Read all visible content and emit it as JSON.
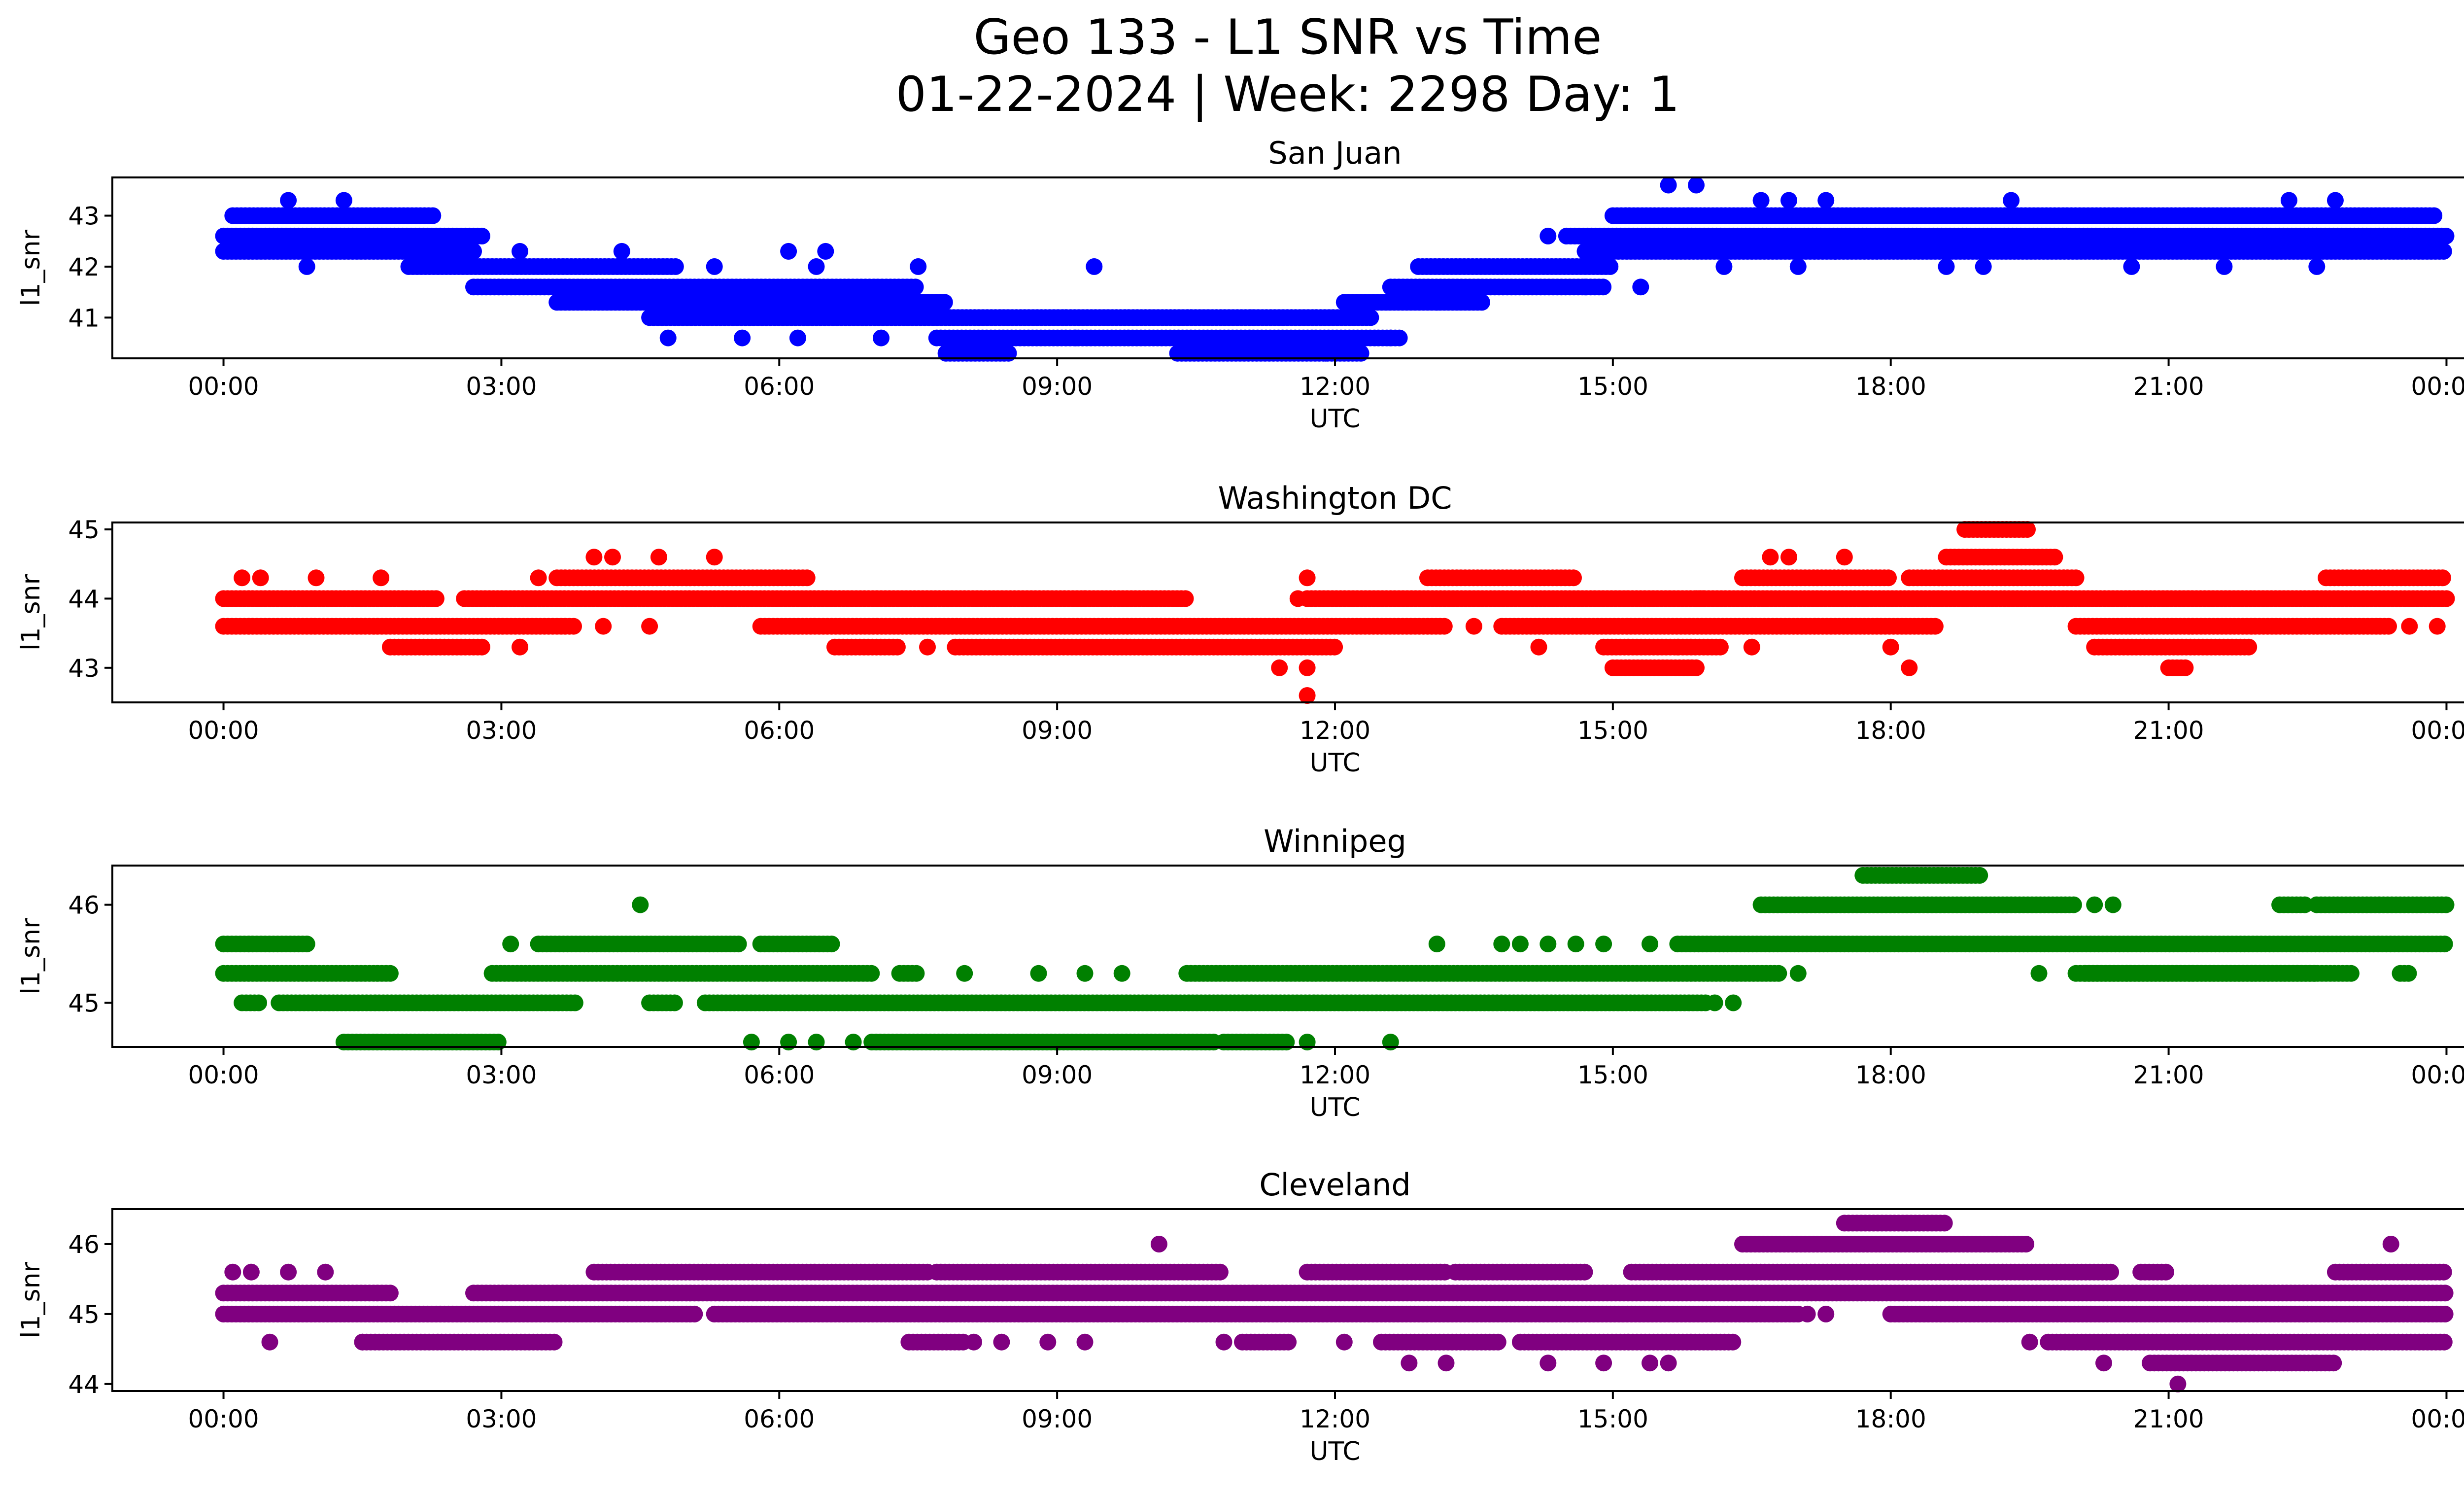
{
  "figure": {
    "title_line1": "Geo 133 - L1 SNR vs Time",
    "title_line2": "01-22-2024 | Week: 2298 Day: 1"
  },
  "chart_data": [
    {
      "type": "scatter",
      "title": "San Juan",
      "xlabel": "UTC",
      "ylabel": "l1_snr",
      "color": "#0000ff",
      "xlim": [
        "00:00",
        "24:00"
      ],
      "ylim": [
        40.2,
        43.75
      ],
      "x_ticks": [
        "00:00",
        "03:00",
        "06:00",
        "09:00",
        "12:00",
        "15:00",
        "18:00",
        "21:00",
        "00:00"
      ],
      "y_ticks": [
        41,
        42,
        43
      ],
      "bands": [
        {
          "y": 43.0,
          "ranges": [
            [
              0.1,
              2.3
            ],
            [
              15.0,
              23.9
            ]
          ]
        },
        {
          "y": 42.6,
          "ranges": [
            [
              0.0,
              2.8
            ],
            [
              14.5,
              24.0
            ]
          ]
        },
        {
          "y": 42.3,
          "ranges": [
            [
              0.0,
              2.7
            ],
            [
              14.7,
              24.0
            ]
          ]
        },
        {
          "y": 42.0,
          "ranges": [
            [
              2.0,
              4.9
            ],
            [
              12.9,
              15.0
            ]
          ]
        },
        {
          "y": 41.6,
          "ranges": [
            [
              2.7,
              7.5
            ],
            [
              12.6,
              14.9
            ]
          ]
        },
        {
          "y": 41.3,
          "ranges": [
            [
              3.6,
              7.8
            ],
            [
              12.1,
              13.6
            ]
          ]
        },
        {
          "y": 41.0,
          "ranges": [
            [
              4.6,
              12.4
            ]
          ]
        },
        {
          "y": 40.6,
          "ranges": [
            [
              7.7,
              12.7
            ]
          ]
        },
        {
          "y": 40.3,
          "ranges": [
            [
              7.8,
              8.5
            ],
            [
              10.3,
              12.3
            ]
          ]
        }
      ],
      "scatter": [
        {
          "x": 0.7,
          "y": 43.3
        },
        {
          "x": 1.3,
          "y": 43.3
        },
        {
          "x": 15.6,
          "y": 43.6
        },
        {
          "x": 15.9,
          "y": 43.6
        },
        {
          "x": 16.6,
          "y": 43.3
        },
        {
          "x": 16.9,
          "y": 43.3
        },
        {
          "x": 17.3,
          "y": 43.3
        },
        {
          "x": 19.3,
          "y": 43.3
        },
        {
          "x": 22.3,
          "y": 43.3
        },
        {
          "x": 22.8,
          "y": 43.3
        },
        {
          "x": 0.9,
          "y": 42.0
        },
        {
          "x": 5.3,
          "y": 42.0
        },
        {
          "x": 6.4,
          "y": 42.0
        },
        {
          "x": 7.5,
          "y": 42.0
        },
        {
          "x": 9.4,
          "y": 42.0
        },
        {
          "x": 16.2,
          "y": 42.0
        },
        {
          "x": 17.0,
          "y": 42.0
        },
        {
          "x": 18.6,
          "y": 42.0
        },
        {
          "x": 19.0,
          "y": 42.0
        },
        {
          "x": 20.6,
          "y": 42.0
        },
        {
          "x": 21.6,
          "y": 42.0
        },
        {
          "x": 22.6,
          "y": 42.0
        },
        {
          "x": 6.1,
          "y": 42.3
        },
        {
          "x": 6.5,
          "y": 42.3
        },
        {
          "x": 4.3,
          "y": 42.3
        },
        {
          "x": 3.2,
          "y": 42.3
        },
        {
          "x": 14.3,
          "y": 42.6
        },
        {
          "x": 17.4,
          "y": 42.3
        },
        {
          "x": 4.8,
          "y": 40.6
        },
        {
          "x": 5.6,
          "y": 40.6
        },
        {
          "x": 6.2,
          "y": 40.6
        },
        {
          "x": 7.1,
          "y": 40.6
        },
        {
          "x": 9.2,
          "y": 40.6
        },
        {
          "x": 11.9,
          "y": 40.3
        },
        {
          "x": 15.3,
          "y": 41.6
        },
        {
          "x": 14.7,
          "y": 41.6
        },
        {
          "x": 13.1,
          "y": 41.3
        },
        {
          "x": 12.6,
          "y": 40.6
        }
      ]
    },
    {
      "type": "scatter",
      "title": "Washington DC",
      "xlabel": "UTC",
      "ylabel": "l1_snr",
      "color": "#ff0000",
      "xlim": [
        "00:00",
        "24:00"
      ],
      "ylim": [
        42.5,
        45.1
      ],
      "x_ticks": [
        "00:00",
        "03:00",
        "06:00",
        "09:00",
        "12:00",
        "15:00",
        "18:00",
        "21:00",
        "00:00"
      ],
      "y_ticks": [
        43,
        44,
        45
      ],
      "bands": [
        {
          "y": 45.0,
          "ranges": [
            [
              18.8,
              19.5
            ]
          ]
        },
        {
          "y": 44.6,
          "ranges": [
            [
              18.6,
              19.8
            ]
          ]
        },
        {
          "y": 44.3,
          "ranges": [
            [
              3.6,
              6.3
            ],
            [
              13.0,
              14.6
            ],
            [
              16.4,
              18.0
            ],
            [
              18.2,
              20.0
            ],
            [
              22.7,
              24.0
            ]
          ]
        },
        {
          "y": 44.0,
          "ranges": [
            [
              0.0,
              2.3
            ],
            [
              2.6,
              10.4
            ],
            [
              11.7,
              16.0
            ],
            [
              15.9,
              24.0
            ]
          ]
        },
        {
          "y": 43.6,
          "ranges": [
            [
              0.0,
              3.8
            ],
            [
              5.8,
              13.2
            ],
            [
              13.8,
              18.5
            ],
            [
              20.0,
              23.4
            ]
          ]
        },
        {
          "y": 43.3,
          "ranges": [
            [
              1.8,
              2.8
            ],
            [
              6.6,
              7.3
            ],
            [
              7.9,
              12.0
            ],
            [
              14.9,
              16.2
            ],
            [
              20.2,
              21.9
            ]
          ]
        },
        {
          "y": 43.0,
          "ranges": [
            [
              15.0,
              15.9
            ],
            [
              21.0,
              21.2
            ]
          ]
        }
      ],
      "scatter": [
        {
          "x": 0.2,
          "y": 44.3
        },
        {
          "x": 0.4,
          "y": 44.3
        },
        {
          "x": 1.0,
          "y": 44.3
        },
        {
          "x": 1.7,
          "y": 44.3
        },
        {
          "x": 3.4,
          "y": 44.3
        },
        {
          "x": 4.7,
          "y": 44.6
        },
        {
          "x": 5.3,
          "y": 44.6
        },
        {
          "x": 4.0,
          "y": 44.6
        },
        {
          "x": 4.2,
          "y": 44.6
        },
        {
          "x": 16.7,
          "y": 44.6
        },
        {
          "x": 16.9,
          "y": 44.6
        },
        {
          "x": 17.5,
          "y": 44.6
        },
        {
          "x": 3.2,
          "y": 43.3
        },
        {
          "x": 4.1,
          "y": 43.6
        },
        {
          "x": 4.6,
          "y": 43.6
        },
        {
          "x": 7.6,
          "y": 43.3
        },
        {
          "x": 11.4,
          "y": 43.0
        },
        {
          "x": 11.7,
          "y": 43.0
        },
        {
          "x": 11.7,
          "y": 42.6
        },
        {
          "x": 11.6,
          "y": 44.0
        },
        {
          "x": 11.7,
          "y": 44.3
        },
        {
          "x": 13.5,
          "y": 43.6
        },
        {
          "x": 14.2,
          "y": 43.3
        },
        {
          "x": 15.7,
          "y": 43.3
        },
        {
          "x": 16.5,
          "y": 43.3
        },
        {
          "x": 18.2,
          "y": 43.0
        },
        {
          "x": 18.0,
          "y": 43.3
        },
        {
          "x": 23.6,
          "y": 43.6
        },
        {
          "x": 23.9,
          "y": 43.6
        },
        {
          "x": 9.3,
          "y": 44.0
        }
      ]
    },
    {
      "type": "scatter",
      "title": "Winnipeg",
      "xlabel": "UTC",
      "ylabel": "l1_snr",
      "color": "#008000",
      "xlim": [
        "00:00",
        "24:00"
      ],
      "ylim": [
        44.55,
        46.4
      ],
      "x_ticks": [
        "00:00",
        "03:00",
        "06:00",
        "09:00",
        "12:00",
        "15:00",
        "18:00",
        "21:00",
        "00:00"
      ],
      "y_ticks": [
        45,
        46
      ],
      "bands": [
        {
          "y": 46.3,
          "ranges": [
            [
              17.7,
              19.0
            ]
          ]
        },
        {
          "y": 46.0,
          "ranges": [
            [
              16.6,
              20.0
            ],
            [
              22.2,
              22.5
            ],
            [
              22.6,
              24.0
            ]
          ]
        },
        {
          "y": 45.6,
          "ranges": [
            [
              0.0,
              0.9
            ],
            [
              3.4,
              5.6
            ],
            [
              5.8,
              6.6
            ],
            [
              15.7,
              24.0
            ]
          ]
        },
        {
          "y": 45.3,
          "ranges": [
            [
              0.0,
              1.8
            ],
            [
              2.9,
              7.0
            ],
            [
              7.3,
              7.5
            ],
            [
              10.4,
              16.8
            ],
            [
              20.1,
              22.6
            ],
            [
              20.0,
              23.0
            ],
            [
              23.5,
              23.6
            ]
          ]
        },
        {
          "y": 45.0,
          "ranges": [
            [
              0.2,
              0.4
            ],
            [
              0.6,
              3.8
            ],
            [
              4.6,
              4.9
            ],
            [
              5.2,
              16.0
            ]
          ]
        },
        {
          "y": 44.6,
          "ranges": [
            [
              1.3,
              3.0
            ],
            [
              7.0,
              10.7
            ],
            [
              10.8,
              11.5
            ]
          ]
        }
      ],
      "scatter": [
        {
          "x": 4.5,
          "y": 46.0
        },
        {
          "x": 20.2,
          "y": 46.0
        },
        {
          "x": 20.4,
          "y": 46.0
        },
        {
          "x": 3.1,
          "y": 45.6
        },
        {
          "x": 13.1,
          "y": 45.6
        },
        {
          "x": 13.8,
          "y": 45.6
        },
        {
          "x": 14.0,
          "y": 45.6
        },
        {
          "x": 14.3,
          "y": 45.6
        },
        {
          "x": 14.6,
          "y": 45.6
        },
        {
          "x": 14.9,
          "y": 45.6
        },
        {
          "x": 15.4,
          "y": 45.6
        },
        {
          "x": 8.0,
          "y": 45.3
        },
        {
          "x": 8.8,
          "y": 45.3
        },
        {
          "x": 9.3,
          "y": 45.3
        },
        {
          "x": 9.7,
          "y": 45.3
        },
        {
          "x": 17.0,
          "y": 45.3
        },
        {
          "x": 19.6,
          "y": 45.3
        },
        {
          "x": 16.1,
          "y": 45.0
        },
        {
          "x": 16.3,
          "y": 45.0
        },
        {
          "x": 5.7,
          "y": 44.6
        },
        {
          "x": 6.1,
          "y": 44.6
        },
        {
          "x": 6.4,
          "y": 44.6
        },
        {
          "x": 6.8,
          "y": 44.6
        },
        {
          "x": 11.7,
          "y": 44.6
        },
        {
          "x": 12.6,
          "y": 44.6
        }
      ]
    },
    {
      "type": "scatter",
      "title": "Cleveland",
      "xlabel": "UTC",
      "ylabel": "l1_snr",
      "color": "#800080",
      "xlim": [
        "00:00",
        "24:00"
      ],
      "ylim": [
        43.9,
        46.5
      ],
      "x_ticks": [
        "00:00",
        "03:00",
        "06:00",
        "09:00",
        "12:00",
        "15:00",
        "18:00",
        "21:00",
        "00:00"
      ],
      "y_ticks": [
        44,
        45,
        46
      ],
      "bands": [
        {
          "y": 46.3,
          "ranges": [
            [
              17.5,
              18.6
            ]
          ]
        },
        {
          "y": 46.0,
          "ranges": [
            [
              16.4,
              19.5
            ]
          ]
        },
        {
          "y": 45.6,
          "ranges": [
            [
              4.0,
              7.6
            ],
            [
              7.7,
              10.8
            ],
            [
              11.7,
              13.2
            ],
            [
              13.3,
              14.7
            ],
            [
              15.2,
              20.4
            ],
            [
              20.7,
              21.0
            ],
            [
              22.8,
              24.0
            ]
          ]
        },
        {
          "y": 45.3,
          "ranges": [
            [
              0.0,
              1.8
            ],
            [
              2.7,
              24.0
            ]
          ]
        },
        {
          "y": 45.0,
          "ranges": [
            [
              0.0,
              5.1
            ],
            [
              5.3,
              17.0
            ],
            [
              18.0,
              24.0
            ]
          ]
        },
        {
          "y": 44.6,
          "ranges": [
            [
              1.5,
              3.6
            ],
            [
              7.4,
              8.0
            ],
            [
              11.0,
              11.5
            ],
            [
              12.5,
              13.8
            ],
            [
              14.0,
              16.3
            ],
            [
              19.7,
              24.0
            ]
          ]
        },
        {
          "y": 44.3,
          "ranges": [
            [
              20.8,
              22.8
            ]
          ]
        }
      ],
      "scatter": [
        {
          "x": 0.1,
          "y": 45.6
        },
        {
          "x": 0.3,
          "y": 45.6
        },
        {
          "x": 0.7,
          "y": 45.6
        },
        {
          "x": 1.1,
          "y": 45.6
        },
        {
          "x": 10.1,
          "y": 46.0
        },
        {
          "x": 23.4,
          "y": 46.0
        },
        {
          "x": 0.5,
          "y": 44.6
        },
        {
          "x": 1.5,
          "y": 44.6
        },
        {
          "x": 8.1,
          "y": 44.6
        },
        {
          "x": 8.4,
          "y": 44.6
        },
        {
          "x": 8.9,
          "y": 44.6
        },
        {
          "x": 9.3,
          "y": 44.6
        },
        {
          "x": 10.8,
          "y": 44.6
        },
        {
          "x": 12.1,
          "y": 44.6
        },
        {
          "x": 12.8,
          "y": 44.3
        },
        {
          "x": 13.2,
          "y": 44.3
        },
        {
          "x": 14.3,
          "y": 44.3
        },
        {
          "x": 14.9,
          "y": 44.3
        },
        {
          "x": 15.4,
          "y": 44.3
        },
        {
          "x": 15.6,
          "y": 44.3
        },
        {
          "x": 19.5,
          "y": 44.6
        },
        {
          "x": 20.3,
          "y": 44.3
        },
        {
          "x": 21.1,
          "y": 44.0
        },
        {
          "x": 17.1,
          "y": 45.0
        },
        {
          "x": 17.3,
          "y": 45.0
        }
      ]
    }
  ]
}
